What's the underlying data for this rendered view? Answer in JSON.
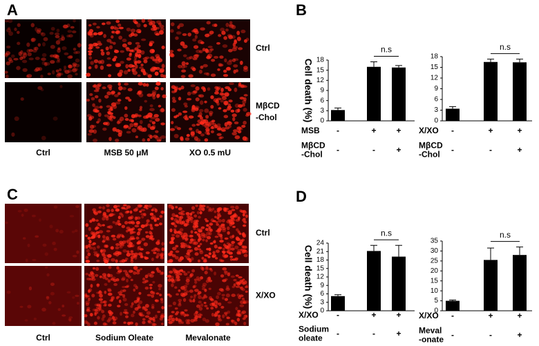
{
  "figure": {
    "panel_a": {
      "label": "A",
      "column_labels": [
        "Ctrl",
        "MSB 50 μM",
        "XO 0.5 mU"
      ],
      "row_labels": [
        [
          "Ctrl"
        ],
        [
          "MβCD",
          "-Chol"
        ]
      ]
    },
    "panel_b": {
      "label": "B"
    },
    "panel_c": {
      "label": "C",
      "column_labels": [
        "Ctrl",
        "Sodium Oleate",
        "Mevalonate"
      ],
      "row_labels": [
        [
          "Ctrl"
        ],
        [
          "X/XO"
        ]
      ]
    },
    "panel_d": {
      "label": "D"
    }
  },
  "chart_data": [
    {
      "type": "bar",
      "ylabel": "Cell death (%)",
      "values": [
        3.2,
        16,
        15.8
      ],
      "errors": [
        0.6,
        1.5,
        0.6
      ],
      "ylim": [
        0,
        18
      ],
      "yticks": [
        0,
        3,
        6,
        9,
        12,
        15,
        18
      ],
      "color": "#000000",
      "annotation": "n.s",
      "condition_rows": [
        {
          "label": [
            "MSB"
          ],
          "signs": [
            "-",
            "+",
            "+"
          ]
        },
        {
          "label": [
            "MβCD",
            "-Chol"
          ],
          "signs": [
            "-",
            "-",
            "+"
          ]
        }
      ]
    },
    {
      "type": "bar",
      "values": [
        3.4,
        16.5,
        16.4
      ],
      "errors": [
        0.6,
        0.8,
        0.9
      ],
      "ylim": [
        0,
        18
      ],
      "yticks": [
        0,
        3,
        6,
        9,
        12,
        15,
        18
      ],
      "color": "#000000",
      "annotation": "n.s",
      "condition_rows": [
        {
          "label": [
            "X/XO"
          ],
          "signs": [
            "-",
            "+",
            "+"
          ]
        },
        {
          "label": [
            "MβCD",
            "-Chol"
          ],
          "signs": [
            "-",
            "-",
            "+"
          ]
        }
      ]
    },
    {
      "type": "bar",
      "ylabel": "Cell death (%)",
      "values": [
        5.2,
        21.2,
        19.2
      ],
      "errors": [
        0.5,
        2,
        4
      ],
      "ylim": [
        0,
        24
      ],
      "yticks": [
        0,
        3,
        6,
        9,
        12,
        15,
        18,
        21,
        24
      ],
      "color": "#000000",
      "annotation": "n.s",
      "condition_rows": [
        {
          "label": [
            "X/XO"
          ],
          "signs": [
            "-",
            "+",
            "+"
          ]
        },
        {
          "label": [
            "Sodium",
            "oleate"
          ],
          "signs": [
            "-",
            "-",
            "+"
          ]
        }
      ]
    },
    {
      "type": "bar",
      "values": [
        5,
        25.5,
        28
      ],
      "errors": [
        0.4,
        6,
        4
      ],
      "ylim": [
        0,
        35
      ],
      "yticks": [
        0,
        5,
        10,
        15,
        20,
        25,
        30,
        35
      ],
      "color": "#000000",
      "annotation": "n.s",
      "condition_rows": [
        {
          "label": [
            "X/XO"
          ],
          "signs": [
            "-",
            "+",
            "+"
          ]
        },
        {
          "label": [
            "Meval",
            "-onate"
          ],
          "signs": [
            "-",
            "-",
            "+"
          ]
        }
      ]
    }
  ]
}
